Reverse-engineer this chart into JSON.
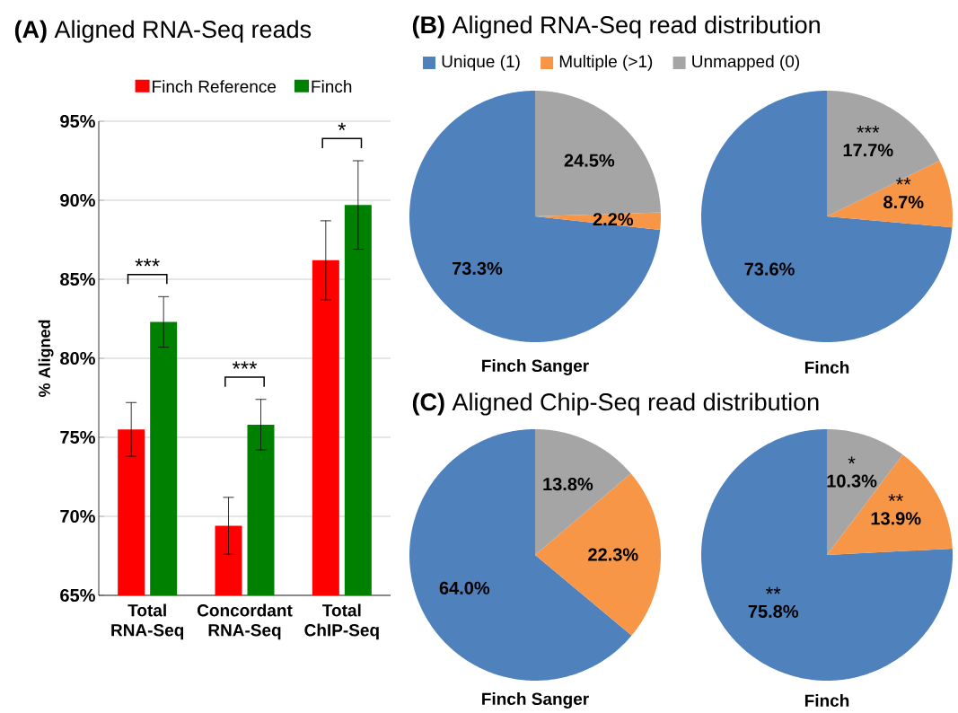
{
  "chart_data": [
    {
      "type": "bar",
      "title": "**(A)** Aligned RNA-Seq reads",
      "ylabel": "% Aligned",
      "categories": [
        "Total RNA-Seq",
        "Concordant RNA-Seq",
        "Total ChIP-Seq"
      ],
      "series": [
        {
          "name": "Finch Reference",
          "color": "#ff0000",
          "values": [
            75.5,
            69.4,
            86.2
          ],
          "errors": [
            [
              73.8,
              77.2
            ],
            [
              67.6,
              71.2
            ],
            [
              83.7,
              88.7
            ]
          ]
        },
        {
          "name": "Finch",
          "color": "#008000",
          "values": [
            82.3,
            75.8,
            89.7
          ],
          "errors": [
            [
              80.7,
              83.9
            ],
            [
              74.2,
              77.4
            ],
            [
              86.9,
              92.5
            ]
          ]
        }
      ],
      "ylim": [
        65,
        95
      ],
      "yticks": [
        {
          "value": 65,
          "label": "65%"
        },
        {
          "value": 70,
          "label": "70%"
        },
        {
          "value": 75,
          "label": "75%"
        },
        {
          "value": 80,
          "label": "80%"
        },
        {
          "value": 85,
          "label": "85%"
        },
        {
          "value": 90,
          "label": "90%"
        },
        {
          "value": 95,
          "label": "95%"
        }
      ],
      "grid": "y",
      "legend": "top",
      "annotations": [
        "***",
        "***",
        "*"
      ]
    },
    {
      "type": "pie",
      "title": "**(B)** Aligned RNA-Seq read distribution",
      "xlabel": "Finch Sanger",
      "categories": [
        "Unique (1)",
        "Multiple (>1)",
        "Unmapped (0)"
      ],
      "values": [
        73.3,
        2.2,
        24.5
      ],
      "colors": [
        "#4f81bd",
        "#f79646",
        "#a5a5a5"
      ],
      "value_labels": [
        "73.3%",
        "2.2%",
        "24.5%"
      ],
      "legend": "top"
    },
    {
      "type": "pie",
      "xlabel": "Finch",
      "categories": [
        null,
        null,
        null
      ],
      "values": [
        73.6,
        8.7,
        17.7
      ],
      "colors": [
        "#4f81bd",
        "#f79646",
        "#a5a5a5"
      ],
      "value_labels": [
        "73.6%",
        "8.7%",
        "17.7%"
      ],
      "annotations": [
        "***",
        "**"
      ]
    },
    {
      "type": "pie",
      "title": "**(C)** Aligned Chip-Seq read distribution",
      "xlabel": "Finch Sanger",
      "categories": [
        null,
        null,
        null
      ],
      "values": [
        64.0,
        22.3,
        13.8
      ],
      "colors": [
        "#4f81bd",
        "#f79646",
        "#a5a5a5"
      ],
      "value_labels": [
        "64.0%",
        "22.3%",
        "13.8%"
      ]
    },
    {
      "type": "pie",
      "xlabel": "Finch",
      "categories": [
        null,
        null,
        null
      ],
      "values": [
        75.8,
        13.9,
        10.3
      ],
      "colors": [
        "#4f81bd",
        "#f79646",
        "#a5a5a5"
      ],
      "value_labels": [
        "75.8%",
        "13.9%",
        "10.3%"
      ],
      "annotations": [
        "*",
        "**",
        "**"
      ]
    }
  ]
}
